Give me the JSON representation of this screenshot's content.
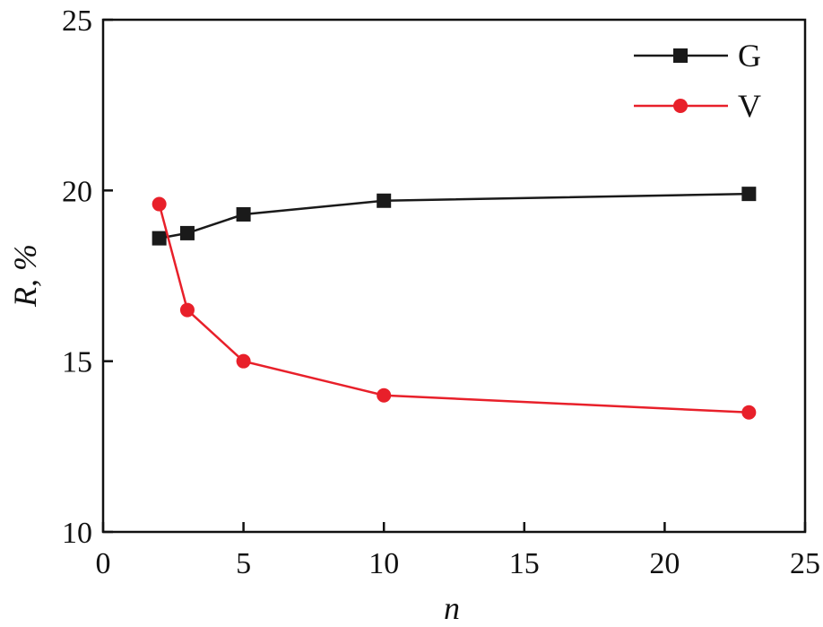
{
  "chart_data": {
    "type": "line",
    "xlabel": "n",
    "ylabel": "R, %",
    "xlim": [
      0,
      25
    ],
    "ylim": [
      10,
      25
    ],
    "xticks": [
      0,
      5,
      10,
      15,
      20,
      25
    ],
    "yticks": [
      10,
      15,
      20,
      25
    ],
    "xtick_labels": [
      "0",
      "5",
      "10",
      "15",
      "20",
      "25"
    ],
    "ytick_labels": [
      "10",
      "15",
      "20",
      "25"
    ],
    "grid": false,
    "legend_position": "top-right",
    "series": [
      {
        "name": "G",
        "color": "#1a1a1a",
        "marker": "square",
        "x": [
          2,
          3,
          5,
          10,
          23
        ],
        "y": [
          18.6,
          18.75,
          19.3,
          19.7,
          19.9
        ]
      },
      {
        "name": "V",
        "color": "#e8202a",
        "marker": "circle",
        "x": [
          2,
          3,
          5,
          10,
          23
        ],
        "y": [
          19.6,
          16.5,
          15.0,
          14.0,
          13.5
        ]
      }
    ]
  }
}
